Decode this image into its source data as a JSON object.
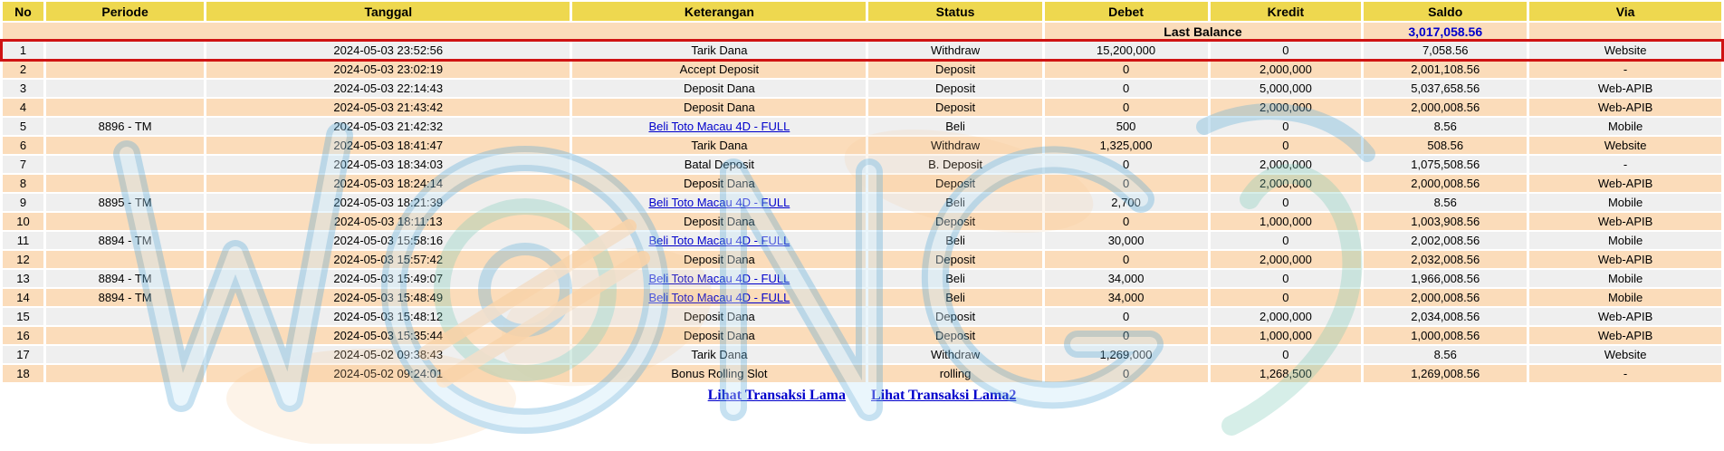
{
  "table": {
    "columns": [
      {
        "key": "no",
        "label": "No"
      },
      {
        "key": "periode",
        "label": "Periode"
      },
      {
        "key": "tanggal",
        "label": "Tanggal"
      },
      {
        "key": "keterangan",
        "label": "Keterangan"
      },
      {
        "key": "status",
        "label": "Status"
      },
      {
        "key": "debet",
        "label": "Debet"
      },
      {
        "key": "kredit",
        "label": "Kredit"
      },
      {
        "key": "saldo",
        "label": "Saldo"
      },
      {
        "key": "via",
        "label": "Via"
      }
    ],
    "last_balance": {
      "label": "Last Balance",
      "value": "3,017,058.56"
    },
    "rows": [
      {
        "no": "1",
        "periode": "",
        "tanggal": "2024-05-03 23:52:56",
        "keterangan": "Tarik Dana",
        "link": false,
        "status": "Withdraw",
        "debet": "15,200,000",
        "kredit": "0",
        "saldo": "7,058.56",
        "via": "Website",
        "highlight": true
      },
      {
        "no": "2",
        "periode": "",
        "tanggal": "2024-05-03 23:02:19",
        "keterangan": "Accept Deposit",
        "link": false,
        "status": "Deposit",
        "debet": "0",
        "kredit": "2,000,000",
        "saldo": "2,001,108.56",
        "via": "-",
        "highlight": false
      },
      {
        "no": "3",
        "periode": "",
        "tanggal": "2024-05-03 22:14:43",
        "keterangan": "Deposit Dana",
        "link": false,
        "status": "Deposit",
        "debet": "0",
        "kredit": "5,000,000",
        "saldo": "5,037,658.56",
        "via": "Web-APIB",
        "highlight": false
      },
      {
        "no": "4",
        "periode": "",
        "tanggal": "2024-05-03 21:43:42",
        "keterangan": "Deposit Dana",
        "link": false,
        "status": "Deposit",
        "debet": "0",
        "kredit": "2,000,000",
        "saldo": "2,000,008.56",
        "via": "Web-APIB",
        "highlight": false
      },
      {
        "no": "5",
        "periode": "8896 - TM",
        "tanggal": "2024-05-03 21:42:32",
        "keterangan": "Beli Toto Macau 4D - FULL",
        "link": true,
        "status": "Beli",
        "debet": "500",
        "kredit": "0",
        "saldo": "8.56",
        "via": "Mobile",
        "highlight": false
      },
      {
        "no": "6",
        "periode": "",
        "tanggal": "2024-05-03 18:41:47",
        "keterangan": "Tarik Dana",
        "link": false,
        "status": "Withdraw",
        "debet": "1,325,000",
        "kredit": "0",
        "saldo": "508.56",
        "via": "Website",
        "highlight": false
      },
      {
        "no": "7",
        "periode": "",
        "tanggal": "2024-05-03 18:34:03",
        "keterangan": "Batal Deposit",
        "link": false,
        "status": "B. Deposit",
        "debet": "0",
        "kredit": "2,000,000",
        "saldo": "1,075,508.56",
        "via": "-",
        "highlight": false
      },
      {
        "no": "8",
        "periode": "",
        "tanggal": "2024-05-03 18:24:14",
        "keterangan": "Deposit Dana",
        "link": false,
        "status": "Deposit",
        "debet": "0",
        "kredit": "2,000,000",
        "saldo": "2,000,008.56",
        "via": "Web-APIB",
        "highlight": false
      },
      {
        "no": "9",
        "periode": "8895 - TM",
        "tanggal": "2024-05-03 18:21:39",
        "keterangan": "Beli Toto Macau 4D - FULL",
        "link": true,
        "status": "Beli",
        "debet": "2,700",
        "kredit": "0",
        "saldo": "8.56",
        "via": "Mobile",
        "highlight": false
      },
      {
        "no": "10",
        "periode": "",
        "tanggal": "2024-05-03 18:11:13",
        "keterangan": "Deposit Dana",
        "link": false,
        "status": "Deposit",
        "debet": "0",
        "kredit": "1,000,000",
        "saldo": "1,003,908.56",
        "via": "Web-APIB",
        "highlight": false
      },
      {
        "no": "11",
        "periode": "8894 - TM",
        "tanggal": "2024-05-03 15:58:16",
        "keterangan": "Beli Toto Macau 4D - FULL",
        "link": true,
        "status": "Beli",
        "debet": "30,000",
        "kredit": "0",
        "saldo": "2,002,008.56",
        "via": "Mobile",
        "highlight": false
      },
      {
        "no": "12",
        "periode": "",
        "tanggal": "2024-05-03 15:57:42",
        "keterangan": "Deposit Dana",
        "link": false,
        "status": "Deposit",
        "debet": "0",
        "kredit": "2,000,000",
        "saldo": "2,032,008.56",
        "via": "Web-APIB",
        "highlight": false
      },
      {
        "no": "13",
        "periode": "8894 - TM",
        "tanggal": "2024-05-03 15:49:07",
        "keterangan": "Beli Toto Macau 4D - FULL",
        "link": true,
        "status": "Beli",
        "debet": "34,000",
        "kredit": "0",
        "saldo": "1,966,008.56",
        "via": "Mobile",
        "highlight": false
      },
      {
        "no": "14",
        "periode": "8894 - TM",
        "tanggal": "2024-05-03 15:48:49",
        "keterangan": "Beli Toto Macau 4D - FULL",
        "link": true,
        "status": "Beli",
        "debet": "34,000",
        "kredit": "0",
        "saldo": "2,000,008.56",
        "via": "Mobile",
        "highlight": false
      },
      {
        "no": "15",
        "periode": "",
        "tanggal": "2024-05-03 15:48:12",
        "keterangan": "Deposit Dana",
        "link": false,
        "status": "Deposit",
        "debet": "0",
        "kredit": "2,000,000",
        "saldo": "2,034,008.56",
        "via": "Web-APIB",
        "highlight": false
      },
      {
        "no": "16",
        "periode": "",
        "tanggal": "2024-05-03 15:35:44",
        "keterangan": "Deposit Dana",
        "link": false,
        "status": "Deposit",
        "debet": "0",
        "kredit": "1,000,000",
        "saldo": "1,000,008.56",
        "via": "Web-APIB",
        "highlight": false
      },
      {
        "no": "17",
        "periode": "",
        "tanggal": "2024-05-02 09:38:43",
        "keterangan": "Tarik Dana",
        "link": false,
        "status": "Withdraw",
        "debet": "1,269,000",
        "kredit": "0",
        "saldo": "8.56",
        "via": "Website",
        "highlight": false
      },
      {
        "no": "18",
        "periode": "",
        "tanggal": "2024-05-02 09:24:01",
        "keterangan": "Bonus Rolling Slot",
        "link": false,
        "status": "rolling",
        "debet": "0",
        "kredit": "1,268,500",
        "saldo": "1,269,008.56",
        "via": "-",
        "highlight": false
      }
    ]
  },
  "footer_links": [
    {
      "label": "Lihat Transaksi Lama"
    },
    {
      "label": "Lihat Transaksi Lama2"
    }
  ],
  "colors": {
    "header_bg": "#eed84f",
    "row_even": "#fbdcba",
    "row_odd": "#efefef",
    "highlight_border": "#cf1313",
    "status_red": "#df3823",
    "value_blue": "#0000cc",
    "link_blue": "#0000cc"
  },
  "watermark": {
    "name": "site-watermark-logo"
  }
}
